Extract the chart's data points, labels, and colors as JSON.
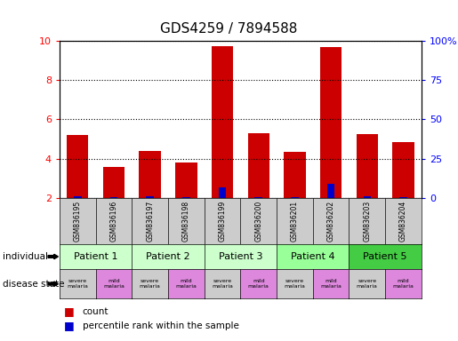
{
  "title": "GDS4259 / 7894588",
  "samples": [
    "GSM836195",
    "GSM836196",
    "GSM836197",
    "GSM836198",
    "GSM836199",
    "GSM836200",
    "GSM836201",
    "GSM836202",
    "GSM836203",
    "GSM836204"
  ],
  "red_values": [
    5.2,
    3.55,
    4.4,
    3.8,
    9.75,
    5.3,
    4.35,
    9.7,
    5.25,
    4.85
  ],
  "blue_values": [
    2.1,
    2.05,
    2.1,
    2.05,
    2.55,
    2.05,
    2.05,
    2.7,
    2.1,
    2.05
  ],
  "ylim": [
    2,
    10
  ],
  "yticks": [
    2,
    4,
    6,
    8,
    10
  ],
  "y2ticks": [
    0,
    25,
    50,
    75,
    100
  ],
  "y2labels": [
    "0",
    "25",
    "50",
    "75",
    "100%"
  ],
  "bar_color": "#cc0000",
  "blue_color": "#0000cc",
  "patients": [
    {
      "label": "Patient 1",
      "cols": [
        0,
        1
      ],
      "color": "#ccffcc"
    },
    {
      "label": "Patient 2",
      "cols": [
        2,
        3
      ],
      "color": "#ccffcc"
    },
    {
      "label": "Patient 3",
      "cols": [
        4,
        5
      ],
      "color": "#ccffcc"
    },
    {
      "label": "Patient 4",
      "cols": [
        6,
        7
      ],
      "color": "#99ff99"
    },
    {
      "label": "Patient 5",
      "cols": [
        8,
        9
      ],
      "color": "#44cc44"
    }
  ],
  "disease_states": [
    {
      "label": "severe\nmalaria",
      "col": 0,
      "color": "#cccccc"
    },
    {
      "label": "mild\nmalaria",
      "col": 1,
      "color": "#dd88dd"
    },
    {
      "label": "severe\nmalaria",
      "col": 2,
      "color": "#cccccc"
    },
    {
      "label": "mild\nmalaria",
      "col": 3,
      "color": "#dd88dd"
    },
    {
      "label": "severe\nmalaria",
      "col": 4,
      "color": "#cccccc"
    },
    {
      "label": "mild\nmalaria",
      "col": 5,
      "color": "#dd88dd"
    },
    {
      "label": "severe\nmalaria",
      "col": 6,
      "color": "#cccccc"
    },
    {
      "label": "mild\nmalaria",
      "col": 7,
      "color": "#dd88dd"
    },
    {
      "label": "severe\nmalaria",
      "col": 8,
      "color": "#cccccc"
    },
    {
      "label": "mild\nmalaria",
      "col": 9,
      "color": "#dd88dd"
    }
  ],
  "sample_bg_color": "#cccccc",
  "legend_items": [
    {
      "color": "#cc0000",
      "label": "count"
    },
    {
      "color": "#0000cc",
      "label": "percentile rank within the sample"
    }
  ]
}
